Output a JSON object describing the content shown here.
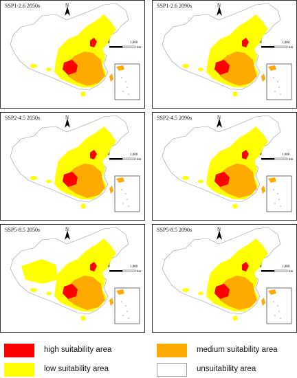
{
  "panels": [
    {
      "title": "SSP1-2.6 2050s"
    },
    {
      "title": "SSP1-2.6 2090s"
    },
    {
      "title": "SSP2-4.5 2050s"
    },
    {
      "title": "SSP2-4.5 2090s"
    },
    {
      "title": "SSP5-8.5 2050s"
    },
    {
      "title": "SSP5-8.5 2090s"
    }
  ],
  "north_label": "N",
  "scale": {
    "zero": "0",
    "max": "1,000",
    "unit": "km"
  },
  "legend": [
    {
      "label": "high suitability area",
      "color": "#ff0000"
    },
    {
      "label": "medium suitability area",
      "color": "#ffaa00"
    },
    {
      "label": "low suitability area",
      "color": "#ffff00"
    },
    {
      "label": "unsuitability area",
      "color": "#ffffff"
    }
  ],
  "colors": {
    "high": "#ff0000",
    "medium": "#ffaa00",
    "low": "#ffff00",
    "unsuitable": "#ffffff",
    "border": "#999999"
  }
}
